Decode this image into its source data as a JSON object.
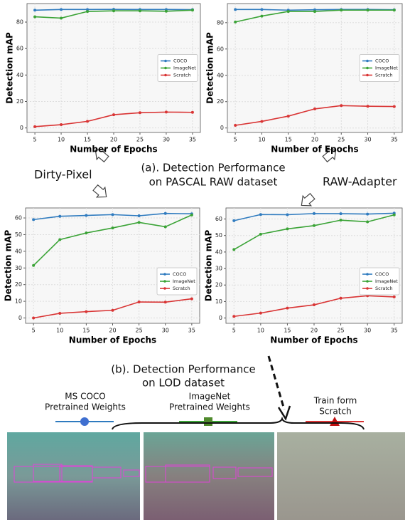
{
  "chart_data": [
    {
      "type": "line",
      "x": [
        5,
        10,
        15,
        20,
        25,
        30,
        35
      ],
      "xlim": [
        3.5,
        36.5
      ],
      "xticks": [
        5,
        10,
        15,
        20,
        25,
        30,
        35
      ],
      "ylim": [
        -3.4,
        94
      ],
      "yticks": [
        0,
        20,
        40,
        60,
        80
      ],
      "xlabel": "Number of Epochs",
      "ylabel": "Detection mAP",
      "grid": true,
      "legend": "center right",
      "series": [
        {
          "name": "COCO",
          "color": "#2f7bbf",
          "values": [
            89,
            89.5,
            89.5,
            89.6,
            89.5,
            89.5,
            89.4
          ]
        },
        {
          "name": "ImageNet",
          "color": "#3aa336",
          "values": [
            84,
            83,
            88,
            88.5,
            88.5,
            88.2,
            89
          ]
        },
        {
          "name": "Scratch",
          "color": "#d93434",
          "values": [
            1,
            2.5,
            5,
            10,
            11.5,
            12,
            11.8
          ]
        }
      ]
    },
    {
      "type": "line",
      "x": [
        5,
        10,
        15,
        20,
        25,
        30,
        35
      ],
      "xlim": [
        3.5,
        36.5
      ],
      "xticks": [
        5,
        10,
        15,
        20,
        25,
        30,
        35
      ],
      "ylim": [
        -3.4,
        94.5
      ],
      "yticks": [
        0,
        20,
        40,
        60,
        80
      ],
      "xlabel": "Number of Epochs",
      "ylabel": "Detection mAP",
      "grid": true,
      "legend": "center right",
      "series": [
        {
          "name": "COCO",
          "color": "#2f7bbf",
          "values": [
            90,
            90,
            89.5,
            89.8,
            90,
            90,
            89.8
          ]
        },
        {
          "name": "ImageNet",
          "color": "#3aa336",
          "values": [
            80.5,
            85,
            88.5,
            88.5,
            89.5,
            89.5,
            89.5
          ]
        },
        {
          "name": "Scratch",
          "color": "#d93434",
          "values": [
            2,
            5,
            9,
            14.5,
            17,
            16.5,
            16.3
          ]
        }
      ]
    },
    {
      "type": "line",
      "x": [
        5,
        10,
        15,
        20,
        25,
        30,
        35
      ],
      "xlim": [
        3.5,
        36.5
      ],
      "xticks": [
        5,
        10,
        15,
        20,
        25,
        30,
        35
      ],
      "ylim": [
        -3.2,
        66
      ],
      "yticks": [
        0,
        10,
        20,
        30,
        40,
        50,
        60
      ],
      "xlabel": "Number of Epochs",
      "ylabel": "Detection mAP",
      "grid": true,
      "legend": "lower right",
      "series": [
        {
          "name": "COCO",
          "color": "#2f7bbf",
          "values": [
            59,
            61,
            61.5,
            62,
            61.3,
            62.7,
            62.5
          ]
        },
        {
          "name": "ImageNet",
          "color": "#3aa336",
          "values": [
            31.5,
            47,
            51,
            54,
            57.3,
            54.7,
            61.8
          ]
        },
        {
          "name": "Scratch",
          "color": "#d93434",
          "values": [
            0,
            2.8,
            3.8,
            4.6,
            9.6,
            9.5,
            11.5
          ]
        }
      ]
    },
    {
      "type": "line",
      "x": [
        5,
        10,
        15,
        20,
        25,
        30,
        35
      ],
      "xlim": [
        3.5,
        36.5
      ],
      "xticks": [
        5,
        10,
        15,
        20,
        25,
        30,
        35
      ],
      "ylim": [
        -3.2,
        66.7
      ],
      "yticks": [
        0,
        10,
        20,
        30,
        40,
        50,
        60
      ],
      "xlabel": "Number of Epochs",
      "ylabel": "Detection mAP",
      "grid": true,
      "legend": "lower right",
      "series": [
        {
          "name": "COCO",
          "color": "#2f7bbf",
          "values": [
            59,
            62.7,
            62.6,
            63.3,
            63.2,
            63,
            63.5
          ]
        },
        {
          "name": "ImageNet",
          "color": "#3aa336",
          "values": [
            41.5,
            50.8,
            54,
            56,
            59.3,
            58.3,
            62.5
          ]
        },
        {
          "name": "Scratch",
          "color": "#d93434",
          "values": [
            1,
            3,
            6,
            8,
            12,
            13.5,
            12.8
          ]
        }
      ]
    }
  ],
  "labels": {
    "left": "Dirty-Pixel",
    "right": "RAW-Adapter"
  },
  "captions": {
    "a": [
      "(a). Detection Performance",
      "on PASCAL RAW dataset"
    ],
    "b": [
      "(b). Detection Performance",
      "on LOD dataset"
    ]
  },
  "weights": [
    [
      "MS COCO",
      "Pretrained Weights"
    ],
    [
      "ImageNet",
      "Pretrained Weights"
    ],
    [
      "Train form",
      "Scratch"
    ]
  ]
}
